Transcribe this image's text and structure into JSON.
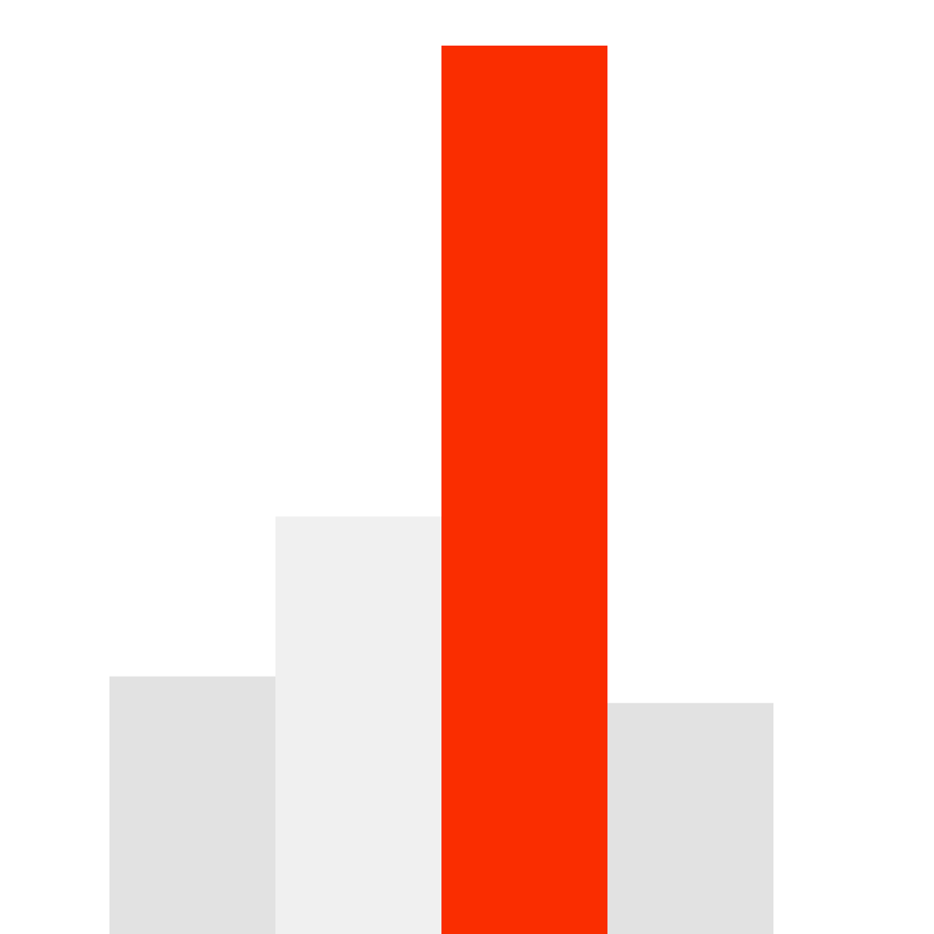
{
  "chart_data": {
    "type": "bar",
    "categories": [
      "",
      "",
      "",
      ""
    ],
    "values": [
      29,
      47,
      100,
      26
    ],
    "ylim": [
      0,
      100
    ],
    "title": "",
    "xlabel": "",
    "ylabel": "",
    "grid": false,
    "legend": "none",
    "colors": [
      "#e2e2e2",
      "#f0f0f0",
      "#fa2d00",
      "#e2e2e2"
    ]
  }
}
